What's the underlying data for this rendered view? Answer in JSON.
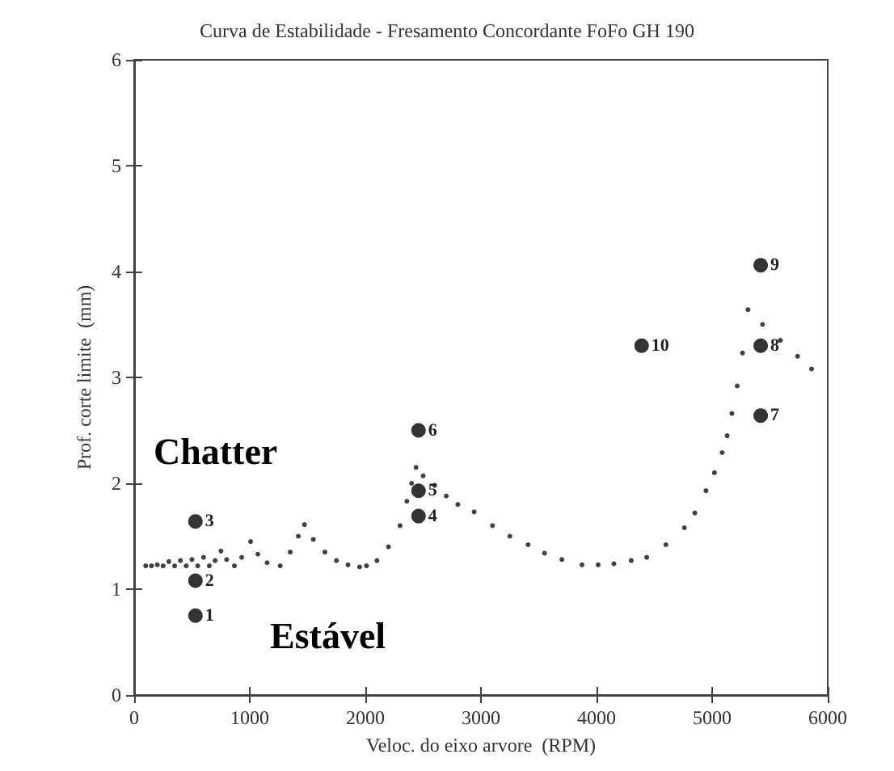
{
  "chart_data": {
    "type": "scatter",
    "title": "Curva de Estabilidade - Fresamento Concordante FoFo GH 190",
    "xlabel": "Veloc. do eixo arvore  (RPM)",
    "ylabel": "Prof. corte limite  (mm)",
    "annotations": [
      "Chatter",
      "Estável",
      {
        "text": "1",
        "x": 530,
        "y": 0.75
      },
      {
        "text": "2",
        "x": 530,
        "y": 1.08
      },
      {
        "text": "3",
        "x": 530,
        "y": 1.64
      },
      {
        "text": "4",
        "x": 2460,
        "y": 1.69
      },
      {
        "text": "5",
        "x": 2460,
        "y": 1.93
      },
      {
        "text": "6",
        "x": 2460,
        "y": 2.5
      },
      {
        "text": "7",
        "x": 5420,
        "y": 2.64
      },
      {
        "text": "8",
        "x": 5420,
        "y": 3.3
      },
      {
        "text": "9",
        "x": 5420,
        "y": 4.06
      },
      {
        "text": "10",
        "x": 4390,
        "y": 3.3
      }
    ],
    "xlim": [
      0,
      6000
    ],
    "xticks": [
      0,
      1000,
      2000,
      3000,
      4000,
      5000,
      6000
    ],
    "ylim": [
      0,
      6
    ],
    "yticks": [
      0,
      1,
      2,
      3,
      4,
      5,
      6
    ],
    "grid": false,
    "marker": "circle",
    "series": [
      {
        "color": "#111111",
        "x": [
          100,
          150,
          200,
          250,
          300,
          350,
          400,
          450,
          500,
          550,
          600,
          650,
          700,
          751,
          800,
          867,
          930,
          1007,
          1070,
          1150,
          1263,
          1350,
          1420,
          1473,
          1550,
          1650,
          1750,
          1850,
          1950,
          2010,
          2100,
          2200,
          2300,
          2359,
          2400,
          2438,
          2500,
          2600,
          2700,
          2800,
          2941,
          3100,
          3250,
          3408,
          3550,
          3700,
          3874,
          4014,
          4150,
          4300,
          4434,
          4600,
          4760,
          4850,
          4947,
          5020,
          5087,
          5130,
          5171,
          5217,
          5263,
          5310,
          5436,
          5590,
          5739,
          5860
        ],
        "values": [
          1.22,
          1.22,
          1.23,
          1.22,
          1.26,
          1.22,
          1.27,
          1.22,
          1.28,
          1.22,
          1.3,
          1.22,
          1.27,
          1.36,
          1.28,
          1.22,
          1.3,
          1.45,
          1.33,
          1.25,
          1.22,
          1.35,
          1.5,
          1.61,
          1.47,
          1.35,
          1.27,
          1.23,
          1.21,
          1.22,
          1.27,
          1.4,
          1.6,
          1.83,
          2.0,
          2.15,
          2.07,
          1.98,
          1.88,
          1.8,
          1.73,
          1.6,
          1.5,
          1.42,
          1.34,
          1.28,
          1.23,
          1.23,
          1.24,
          1.27,
          1.3,
          1.42,
          1.58,
          1.72,
          1.93,
          2.1,
          2.29,
          2.45,
          2.66,
          2.92,
          3.23,
          3.64,
          3.5,
          3.35,
          3.2,
          3.08
        ]
      },
      {
        "color": "#000000",
        "x": [
          530,
          530,
          530,
          2460,
          2460,
          2460,
          5420,
          5420,
          5420,
          4390
        ],
        "values": [
          0.75,
          1.08,
          1.64,
          1.69,
          1.93,
          2.5,
          2.64,
          3.3,
          4.06,
          3.3
        ]
      }
    ]
  }
}
